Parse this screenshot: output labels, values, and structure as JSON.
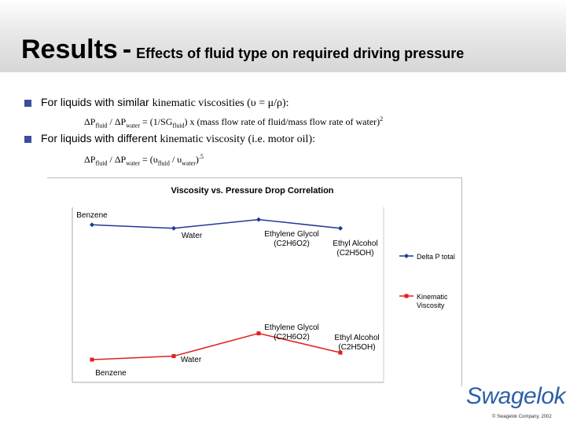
{
  "slide": {
    "title_main": "Results",
    "title_sep": "-",
    "title_sub": "Effects of fluid type on required driving pressure",
    "bullet1": {
      "prefix": "For liquids with similar ",
      "rest": "kinematic viscosities (υ = μ/ρ):"
    },
    "formula1": {
      "p1": "ΔP",
      "s1": "fluid",
      "p2": " / ΔP",
      "s2": "water",
      "p3": " = (1/SG",
      "s3": "fluid",
      "p4": ") x (mass flow rate of fluid/mass flow rate of water)",
      "exp": "2"
    },
    "bullet2": {
      "prefix": "For liquids with different ",
      "rest": "kinematic viscosity (i.e. motor oil):"
    },
    "formula2": {
      "p1": "ΔP",
      "s1": "fluid",
      "p2": " / ΔP",
      "s2": "water",
      "p3": " = (υ",
      "s3": "fluid",
      "p4": " / υ",
      "s4": "water",
      "p5": ")",
      "exp": ".5"
    },
    "logo": "Swagelok",
    "footer": "© Swagelok Company, 2002"
  },
  "chart_data": {
    "type": "line",
    "title": "Viscosity vs. Pressure Drop Correlation",
    "categories": [
      "Benzene",
      "Water",
      "Ethylene Glycol (C2H6O2)",
      "Ethyl Alcohol (C2H5OH)"
    ],
    "series": [
      {
        "name": "Delta P total",
        "color": "#1f3a93",
        "marker": "diamond",
        "values": [
          0.9,
          0.88,
          0.93,
          0.88
        ],
        "labels": [
          [
            "Benzene"
          ],
          [
            "Water"
          ],
          [
            "Ethylene Glycol",
            "(C2H6O2)"
          ],
          [
            "Ethyl Alcohol",
            "(C2H5OH)"
          ]
        ]
      },
      {
        "name": "Kinematic Viscosity",
        "color": "#e02020",
        "marker": "square",
        "values": [
          0.13,
          0.15,
          0.28,
          0.17
        ],
        "labels": [
          [
            "Benzene"
          ],
          [
            "Water"
          ],
          [
            "Ethylene Glycol",
            "(C2H6O2)"
          ],
          [
            "Ethyl Alcohol",
            "(C2H5OH)"
          ]
        ]
      }
    ],
    "legend": [
      "Delta P total",
      "Kinematic Viscosity"
    ],
    "legend_position": "right",
    "grid": false
  }
}
